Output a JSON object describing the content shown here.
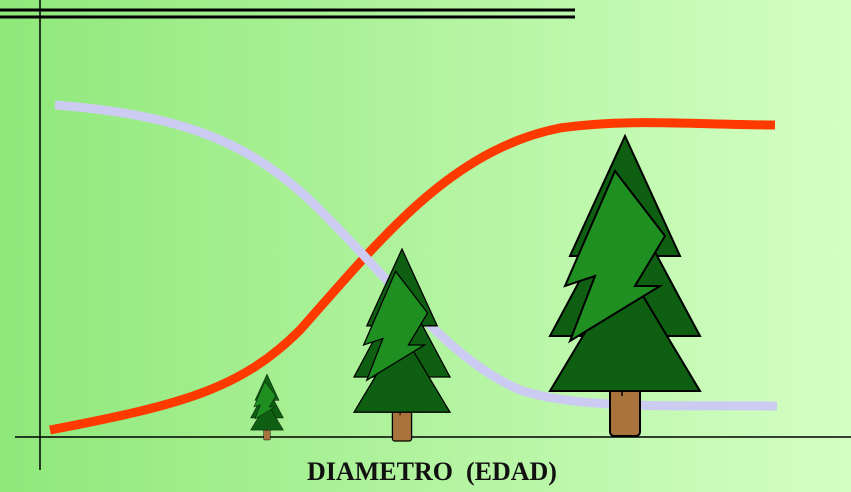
{
  "axis_label": "DIAMETRO  (EDAD)"
}
